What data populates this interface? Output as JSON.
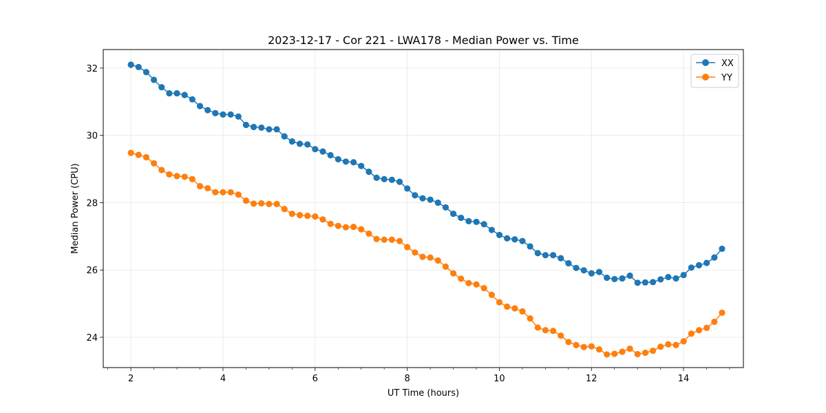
{
  "chart_data": {
    "type": "line",
    "title": "2023-12-17 - Cor 221 - LWA178 - Median Power vs. Time",
    "xlabel": "UT Time (hours)",
    "ylabel": "Median Power (CPU)",
    "xlim": [
      1.4,
      15.3
    ],
    "ylim": [
      23.1,
      32.55
    ],
    "xticks": [
      2,
      4,
      6,
      8,
      10,
      12,
      14
    ],
    "yticks": [
      24,
      26,
      28,
      30,
      32
    ],
    "xminor_step": 0.5,
    "grid": true,
    "legend_position": "top-right",
    "x_start": 2.0,
    "x_step": 0.1667,
    "series": [
      {
        "name": "XX",
        "color": "#1f77b4",
        "values": [
          32.1,
          32.03,
          31.88,
          31.65,
          31.43,
          31.25,
          31.25,
          31.2,
          31.07,
          30.87,
          30.75,
          30.66,
          30.62,
          30.62,
          30.56,
          30.31,
          30.25,
          30.23,
          30.18,
          30.18,
          29.97,
          29.82,
          29.75,
          29.73,
          29.59,
          29.52,
          29.41,
          29.29,
          29.22,
          29.2,
          29.09,
          28.92,
          28.74,
          28.7,
          28.68,
          28.62,
          28.42,
          28.22,
          28.13,
          28.09,
          28.0,
          27.86,
          27.67,
          27.55,
          27.45,
          27.43,
          27.36,
          27.19,
          27.04,
          26.94,
          26.91,
          26.86,
          26.7,
          26.5,
          26.44,
          26.44,
          26.35,
          26.2,
          26.06,
          25.99,
          25.9,
          25.94,
          25.77,
          25.73,
          25.75,
          25.83,
          25.62,
          25.63,
          25.64,
          25.72,
          25.79,
          25.75,
          25.85,
          26.07,
          26.14,
          26.21,
          26.37,
          26.63
        ]
      },
      {
        "name": "YY",
        "color": "#ff7f0e",
        "values": [
          29.48,
          29.42,
          29.35,
          29.17,
          28.97,
          28.84,
          28.79,
          28.77,
          28.7,
          28.49,
          28.43,
          28.31,
          28.31,
          28.31,
          28.24,
          28.06,
          27.97,
          27.98,
          27.96,
          27.96,
          27.81,
          27.67,
          27.63,
          27.61,
          27.59,
          27.5,
          27.37,
          27.31,
          27.27,
          27.28,
          27.21,
          27.08,
          26.92,
          26.9,
          26.9,
          26.86,
          26.68,
          26.52,
          26.39,
          26.37,
          26.28,
          26.1,
          25.9,
          25.74,
          25.61,
          25.57,
          25.46,
          25.26,
          25.04,
          24.91,
          24.86,
          24.77,
          24.56,
          24.29,
          24.21,
          24.19,
          24.05,
          23.86,
          23.77,
          23.71,
          23.73,
          23.64,
          23.49,
          23.51,
          23.57,
          23.66,
          23.5,
          23.54,
          23.6,
          23.72,
          23.79,
          23.77,
          23.88,
          24.11,
          24.21,
          24.28,
          24.46,
          24.73
        ]
      }
    ]
  }
}
